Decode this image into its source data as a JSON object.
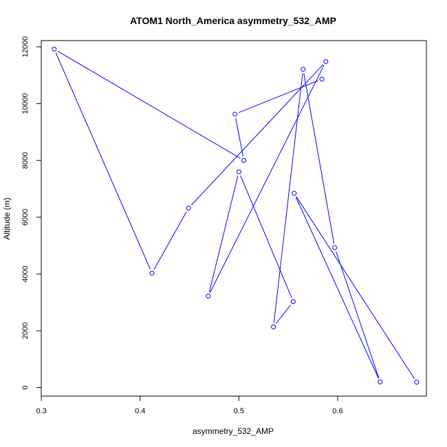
{
  "chart_data": {
    "type": "line",
    "title": "ATOM1 North_America asymmetry_532_AMP",
    "xlabel": "asymmetry_532_AMP",
    "ylabel": "Altitude (m)",
    "xlim": [
      0.3,
      0.69
    ],
    "ylim": [
      0,
      12200
    ],
    "xticks": [
      0.3,
      0.4,
      0.5,
      0.6
    ],
    "xtick_labels": [
      "0.3",
      "0.4",
      "0.5",
      "0.6"
    ],
    "yticks": [
      0,
      2000,
      4000,
      6000,
      8000,
      10000,
      12000
    ],
    "ytick_labels": [
      "0",
      "2000",
      "4000",
      "6000",
      "8000",
      "10000",
      "12000"
    ],
    "grid": false,
    "legend": "none",
    "marker": "open-circle",
    "color": "#0000ff",
    "series": [
      {
        "points": [
          {
            "x": 0.68,
            "y": 190
          },
          {
            "x": 0.556,
            "y": 6840
          },
          {
            "x": 0.643,
            "y": 200
          },
          {
            "x": 0.597,
            "y": 4930
          },
          {
            "x": 0.565,
            "y": 11210
          },
          {
            "x": 0.535,
            "y": 2140
          },
          {
            "x": 0.555,
            "y": 3030
          },
          {
            "x": 0.5,
            "y": 7600
          },
          {
            "x": 0.469,
            "y": 3220
          },
          {
            "x": 0.588,
            "y": 11480
          },
          {
            "x": 0.449,
            "y": 6320
          },
          {
            "x": 0.412,
            "y": 4030
          },
          {
            "x": 0.313,
            "y": 11920
          },
          {
            "x": 0.505,
            "y": 8000
          },
          {
            "x": 0.496,
            "y": 9630
          },
          {
            "x": 0.584,
            "y": 10860
          }
        ]
      }
    ]
  }
}
